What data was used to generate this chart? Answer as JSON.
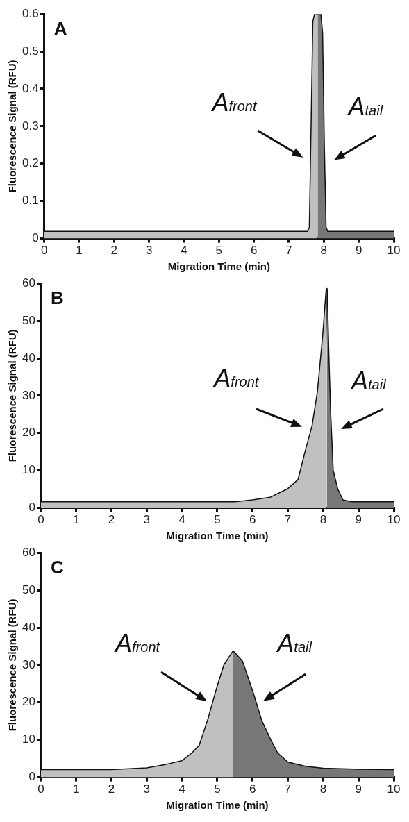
{
  "chart_data": [
    {
      "type": "area",
      "title": "A",
      "xlabel": "Migration Time (min)",
      "ylabel": "Fluorescence Signal (RFU)",
      "xlim": [
        0,
        10
      ],
      "xticks": [
        0,
        1,
        2,
        3,
        4,
        5,
        6,
        7,
        8,
        9,
        10
      ],
      "ylim": [
        0,
        0.6
      ],
      "yticks": [
        0,
        0.1,
        0.2,
        0.3,
        0.4,
        0.5,
        0.6
      ],
      "grid": false,
      "legend": false,
      "marker": "none",
      "series": [
        {
          "type": "area",
          "color": "#c0c0c0",
          "x": [
            0,
            7.55,
            7.6,
            7.65,
            7.7,
            7.75,
            7.82
          ],
          "values": [
            0.018,
            0.018,
            0.03,
            0.3,
            0.58,
            0.6,
            0.6
          ]
        },
        {
          "type": "area",
          "color": "#777777",
          "x": [
            7.82,
            7.9,
            7.95,
            8.0,
            8.05,
            8.1,
            10
          ],
          "values": [
            0.6,
            0.6,
            0.55,
            0.25,
            0.03,
            0.018,
            0.018
          ]
        },
        {
          "type": "line",
          "color": "#111111",
          "x": [
            0,
            7.55,
            7.6,
            7.65,
            7.7,
            7.75,
            7.82,
            7.9,
            7.95,
            8.0,
            8.05,
            8.1,
            10
          ],
          "values": [
            0.018,
            0.018,
            0.03,
            0.3,
            0.58,
            0.6,
            0.6,
            0.6,
            0.55,
            0.25,
            0.03,
            0.018,
            0.018
          ]
        }
      ],
      "annotations": [
        "A$_{front}$",
        "A$_{tail}$"
      ]
    },
    {
      "type": "area",
      "title": "B",
      "xlabel": "Migration Time (min)",
      "ylabel": "Fluorescence Signal (RFU)",
      "xlim": [
        0,
        10
      ],
      "xticks": [
        0,
        1,
        2,
        3,
        4,
        5,
        6,
        7,
        8,
        9,
        10
      ],
      "ylim": [
        0,
        60
      ],
      "yticks": [
        0,
        10,
        20,
        30,
        40,
        50,
        60
      ],
      "grid": false,
      "legend": false,
      "marker": "none",
      "series": [
        {
          "type": "area",
          "color": "#c0c0c0",
          "x": [
            0,
            5.5,
            6.0,
            6.5,
            7.0,
            7.3,
            7.5,
            7.7,
            7.85,
            8.0,
            8.1
          ],
          "values": [
            1.5,
            1.5,
            2,
            2.7,
            5,
            7.5,
            15,
            22,
            31,
            46,
            58.5
          ]
        },
        {
          "type": "area",
          "color": "#777777",
          "x": [
            8.1,
            8.15,
            8.2,
            8.27,
            8.4,
            8.55,
            8.8,
            10
          ],
          "values": [
            58.5,
            40,
            25,
            10,
            5,
            2,
            1.5,
            1.5
          ]
        },
        {
          "type": "line",
          "color": "#111111",
          "x": [
            0,
            5.5,
            6.0,
            6.5,
            7.0,
            7.3,
            7.5,
            7.7,
            7.85,
            8.0,
            8.1,
            8.15,
            8.2,
            8.27,
            8.4,
            8.55,
            8.8,
            10
          ],
          "values": [
            1.5,
            1.5,
            2,
            2.7,
            5,
            7.5,
            15,
            22,
            31,
            46,
            58.5,
            40,
            25,
            10,
            5,
            2,
            1.5,
            1.5
          ]
        }
      ],
      "annotations": [
        "A$_{front}$",
        "A$_{tail}$"
      ]
    },
    {
      "type": "area",
      "title": "C",
      "xlabel": "Migration Time (min)",
      "ylabel": "Fluorescence Signal (RFU)",
      "xlim": [
        0,
        10
      ],
      "xticks": [
        0,
        1,
        2,
        3,
        4,
        5,
        6,
        7,
        8,
        9,
        10
      ],
      "ylim": [
        0,
        60
      ],
      "yticks": [
        0,
        10,
        20,
        30,
        40,
        50,
        60
      ],
      "grid": false,
      "legend": false,
      "marker": "none",
      "series": [
        {
          "type": "area",
          "color": "#c0c0c0",
          "x": [
            0,
            2,
            3,
            3.5,
            4,
            4.3,
            4.5,
            4.75,
            5,
            5.2,
            5.45
          ],
          "values": [
            1.9,
            1.9,
            2.4,
            3.2,
            4.3,
            6.5,
            8.5,
            15.6,
            24,
            30,
            33.6
          ]
        },
        {
          "type": "area",
          "color": "#777777",
          "x": [
            5.45,
            5.7,
            6,
            6.25,
            6.5,
            6.7,
            7,
            7.5,
            8,
            9,
            10
          ],
          "values": [
            33.6,
            31,
            22.7,
            15,
            10,
            6.4,
            3.9,
            2.8,
            2.3,
            2,
            1.9
          ]
        },
        {
          "type": "line",
          "color": "#111111",
          "x": [
            0,
            2,
            3,
            3.5,
            4,
            4.3,
            4.5,
            4.75,
            5,
            5.2,
            5.45,
            5.7,
            6,
            6.25,
            6.5,
            6.7,
            7,
            7.5,
            8,
            9,
            10
          ],
          "values": [
            1.9,
            1.9,
            2.4,
            3.2,
            4.3,
            6.5,
            8.5,
            15.6,
            24,
            30,
            33.6,
            31,
            22.7,
            15,
            10,
            6.4,
            3.9,
            2.8,
            2.3,
            2,
            1.9
          ]
        }
      ],
      "annotations": [
        "A$_{front}$",
        "A$_{tail}$"
      ]
    }
  ]
}
